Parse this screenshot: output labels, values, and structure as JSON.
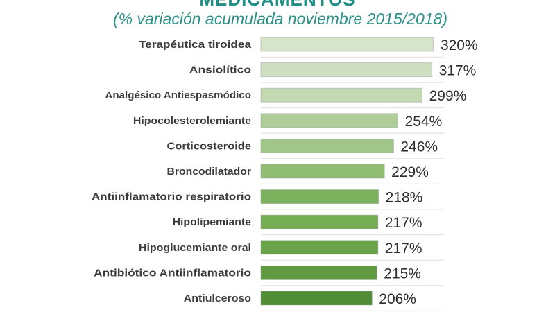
{
  "chart_data": {
    "type": "bar",
    "orientation": "horizontal",
    "title": "MEDICAMENTOS",
    "subtitle": "(% variación acumulada noviembre 2015/2018)",
    "categories": [
      "Terapéutica tiroidea",
      "Ansiolítico",
      "Analgésico Antiespasmódico",
      "Hipocolesterolemiante",
      "Corticosteroide",
      "Broncodilatador",
      "Antiinflamatorio respiratorio",
      "Hipolipemiante",
      "Hipoglucemiante oral",
      "Antibiótico Antiinflamatorio",
      "Antiulceroso"
    ],
    "values": [
      320,
      317,
      299,
      254,
      246,
      229,
      218,
      217,
      217,
      215,
      206
    ],
    "data_labels": [
      "320%",
      "317%",
      "299%",
      "254%",
      "246%",
      "229%",
      "218%",
      "217%",
      "217%",
      "215%",
      "206%"
    ],
    "unit": "%",
    "xlim": [
      0,
      340
    ],
    "grid": false,
    "colors": [
      "#d5e4cb",
      "#cfe0c2",
      "#c3d9b2",
      "#aecd98",
      "#a2c689",
      "#8fbd72",
      "#7cb25d",
      "#74ad53",
      "#6aa34a",
      "#5f9a40",
      "#518d35"
    ],
    "title_color": "#1f8f86"
  }
}
